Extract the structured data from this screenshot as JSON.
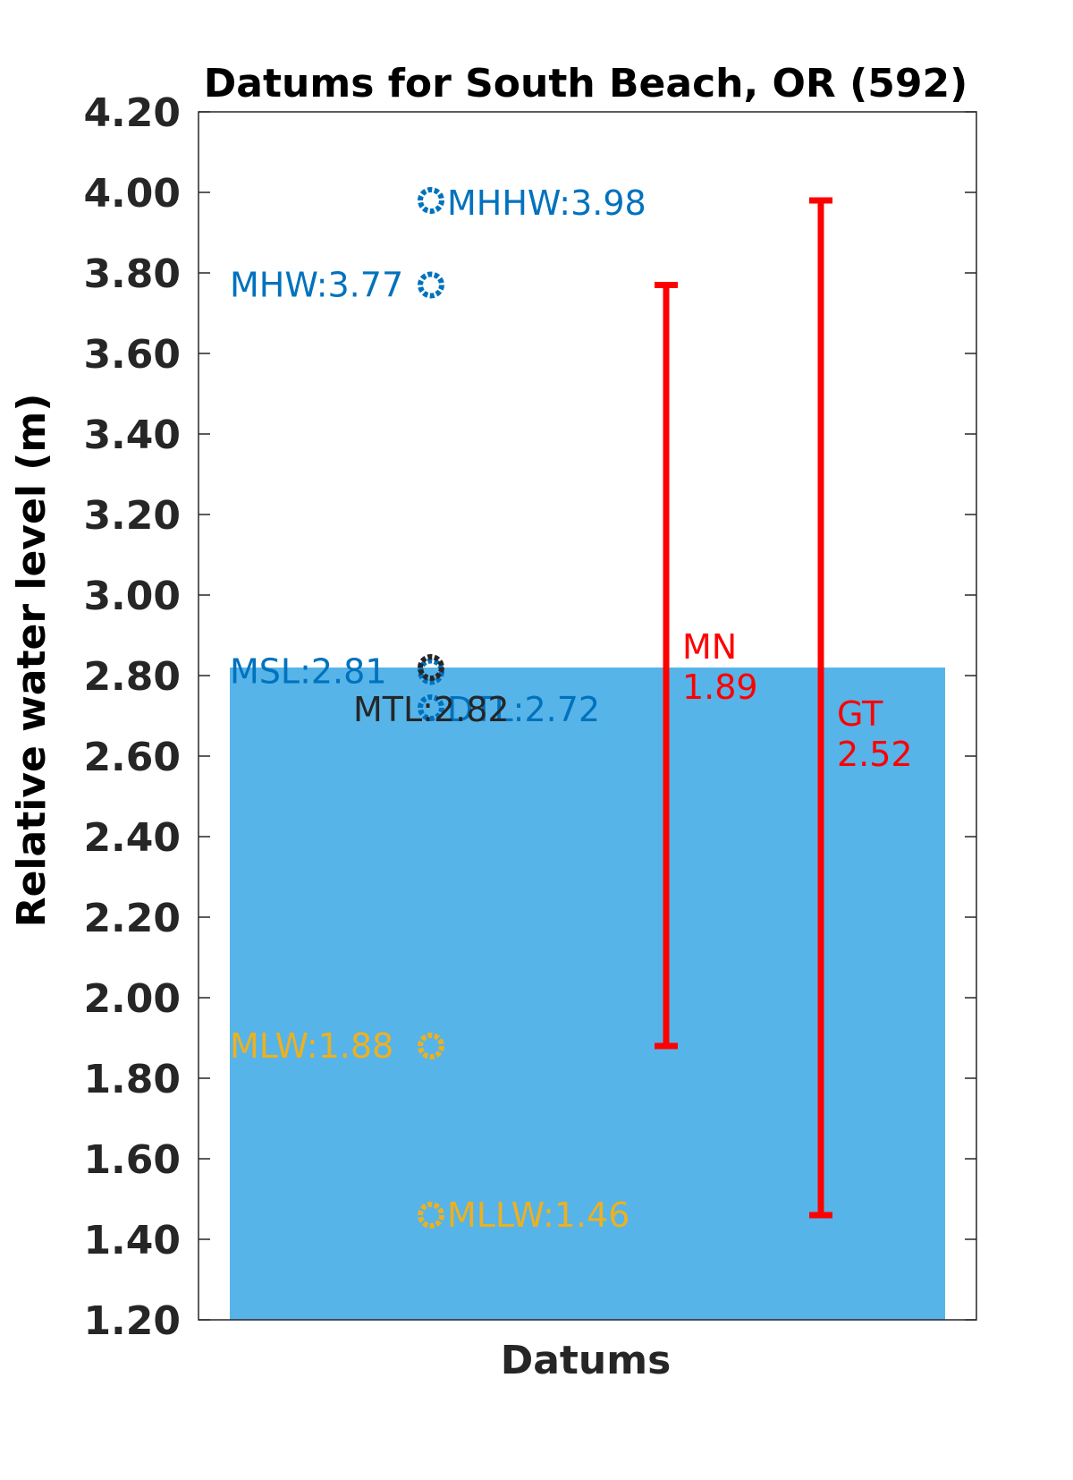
{
  "chart_data": {
    "type": "scatter",
    "title": "Datums for South Beach, OR (592)",
    "xlabel": "Datums",
    "ylabel": "Relative water level (m)",
    "ylim": [
      1.2,
      4.2
    ],
    "yticks": [
      "1.20",
      "1.40",
      "1.60",
      "1.80",
      "2.00",
      "2.20",
      "2.40",
      "2.60",
      "2.80",
      "3.00",
      "3.20",
      "3.40",
      "3.60",
      "3.80",
      "4.00",
      "4.20"
    ],
    "grid": false,
    "colors": {
      "high_datum": "#0072BD",
      "low_datum": "#EDB120",
      "mtl": "#262626",
      "range": "#FF0000",
      "background_bar": "#56B4E9"
    },
    "background_bar": {
      "value": 2.82
    },
    "datums": [
      {
        "name": "MHHW",
        "value": 3.98,
        "label": "MHHW:3.98",
        "color": "#0072BD",
        "side": "right"
      },
      {
        "name": "MHW",
        "value": 3.77,
        "label": "MHW:3.77",
        "color": "#0072BD",
        "side": "left"
      },
      {
        "name": "MSL",
        "value": 2.81,
        "label": "MSL:2.81",
        "color": "#0072BD",
        "side": "left"
      },
      {
        "name": "MTL",
        "value": 2.82,
        "label": "MTL:2.82",
        "color": "#262626",
        "side": "left"
      },
      {
        "name": "DTL",
        "value": 2.72,
        "label": "DTL:2.72",
        "color": "#0072BD",
        "side": "right"
      },
      {
        "name": "MLW",
        "value": 1.88,
        "label": "MLW:1.88",
        "color": "#EDB120",
        "side": "left"
      },
      {
        "name": "MLLW",
        "value": 1.46,
        "label": "MLLW:1.46",
        "color": "#EDB120",
        "side": "right"
      }
    ],
    "ranges": [
      {
        "name": "MN",
        "low": 1.88,
        "high": 3.77,
        "value_text": "1.89",
        "color": "#FF0000"
      },
      {
        "name": "GT",
        "low": 1.46,
        "high": 3.98,
        "value_text": "2.52",
        "color": "#FF0000"
      }
    ]
  }
}
